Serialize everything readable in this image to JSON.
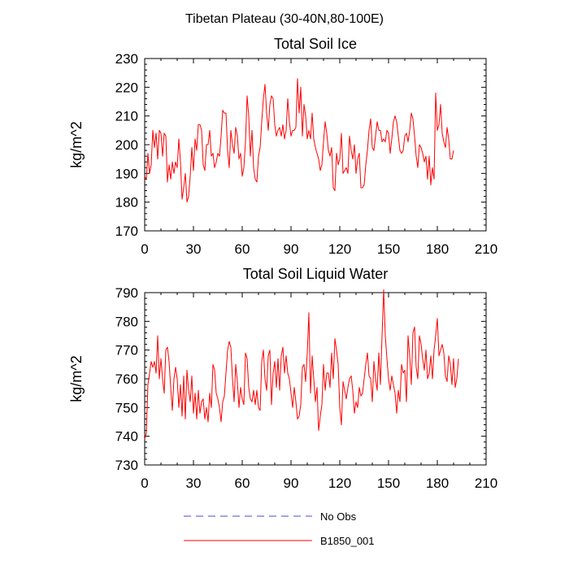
{
  "figure_title": "Tibetan Plateau (30-40N,80-100E)",
  "legend": [
    {
      "label": "No Obs",
      "color": "#4a4ad8",
      "dash": true
    },
    {
      "label": "B1850_001",
      "color": "#ff0000",
      "dash": false
    }
  ],
  "chart_data": [
    {
      "type": "line",
      "title": "Total Soil Ice",
      "xlabel": "",
      "ylabel": "kg/m^2",
      "xlim": [
        0,
        210
      ],
      "ylim": [
        170,
        230
      ],
      "xticks": [
        0,
        30,
        60,
        90,
        120,
        150,
        180,
        210
      ],
      "yticks": [
        170,
        180,
        190,
        200,
        210,
        220,
        230
      ],
      "series": [
        {
          "name": "B1850_001",
          "color": "#ff0000",
          "values": [
            189,
            188,
            197,
            190,
            193,
            205,
            199,
            204,
            195,
            205,
            204,
            196,
            204,
            203,
            187,
            193,
            188,
            194,
            190,
            194,
            192,
            202,
            194,
            181,
            185,
            190,
            180,
            182,
            189,
            199,
            191,
            202,
            198,
            207,
            207,
            205,
            193,
            191,
            200,
            200,
            205,
            196,
            197,
            192,
            194,
            197,
            196,
            203,
            212,
            211,
            211,
            198,
            192,
            205,
            200,
            197,
            206,
            203,
            195,
            197,
            189,
            192,
            201,
            217,
            210,
            196,
            205,
            192,
            188,
            187,
            196,
            199,
            208,
            216,
            221,
            211,
            205,
            214,
            217,
            216,
            207,
            203,
            205,
            206,
            203,
            207,
            202,
            205,
            216,
            208,
            203,
            205,
            205,
            206,
            223,
            211,
            220,
            203,
            214,
            210,
            202,
            205,
            202,
            211,
            202,
            199,
            197,
            195,
            191,
            193,
            201,
            208,
            204,
            198,
            196,
            199,
            185,
            184,
            197,
            193,
            195,
            204,
            190,
            191,
            192,
            190,
            203,
            198,
            195,
            200,
            190,
            195,
            197,
            185,
            185,
            186,
            193,
            198,
            205,
            209,
            199,
            198,
            203,
            208,
            205,
            205,
            201,
            202,
            201,
            205,
            204,
            197,
            202,
            208,
            210,
            208,
            203,
            198,
            197,
            198,
            203,
            204,
            201,
            205,
            211,
            209,
            203,
            196,
            192,
            200,
            199,
            197,
            194,
            196,
            188,
            196,
            186,
            192,
            188,
            218,
            205,
            207,
            214,
            204,
            201,
            199,
            206,
            202,
            195,
            195,
            198
          ]
        }
      ]
    },
    {
      "type": "line",
      "title": "Total Soil Liquid Water",
      "xlabel": "",
      "ylabel": "kg/m^2",
      "xlim": [
        0,
        210
      ],
      "ylim": [
        730,
        790
      ],
      "xticks": [
        0,
        30,
        60,
        90,
        120,
        150,
        180,
        210
      ],
      "yticks": [
        730,
        740,
        750,
        760,
        770,
        780,
        790
      ],
      "series": [
        {
          "name": "B1850_001",
          "color": "#ff0000",
          "values": [
            739,
            741,
            758,
            762,
            766,
            764,
            766,
            762,
            775,
            760,
            767,
            760,
            755,
            770,
            771,
            766,
            757,
            749,
            760,
            764,
            760,
            750,
            758,
            747,
            761,
            746,
            763,
            756,
            752,
            761,
            748,
            755,
            746,
            756,
            748,
            752,
            753,
            746,
            750,
            745,
            755,
            750,
            765,
            763,
            755,
            753,
            750,
            745,
            752,
            754,
            762,
            770,
            773,
            771,
            760,
            752,
            765,
            759,
            750,
            757,
            753,
            751,
            769,
            767,
            757,
            753,
            752,
            756,
            751,
            756,
            750,
            749,
            766,
            770,
            760,
            756,
            768,
            770,
            751,
            762,
            766,
            757,
            767,
            756,
            768,
            771,
            762,
            768,
            762,
            760,
            755,
            750,
            757,
            752,
            746,
            747,
            751,
            764,
            765,
            759,
            769,
            783,
            755,
            768,
            760,
            752,
            757,
            742,
            747,
            751,
            765,
            756,
            762,
            762,
            757,
            769,
            760,
            774,
            770,
            765,
            750,
            744,
            759,
            756,
            753,
            757,
            760,
            761,
            756,
            748,
            752,
            750,
            757,
            754,
            755,
            760,
            765,
            769,
            761,
            760,
            752,
            766,
            760,
            756,
            769,
            758,
            775,
            791,
            775,
            767,
            760,
            756,
            761,
            758,
            755,
            748,
            756,
            752,
            765,
            762,
            763,
            752,
            775,
            768,
            758,
            776,
            778,
            764,
            760,
            775,
            772,
            767,
            763,
            770,
            760,
            762,
            768,
            760,
            770,
            775,
            781,
            768,
            770,
            772,
            769,
            761,
            759,
            768,
            765,
            758,
            767,
            757,
            760,
            767
          ]
        }
      ]
    }
  ]
}
